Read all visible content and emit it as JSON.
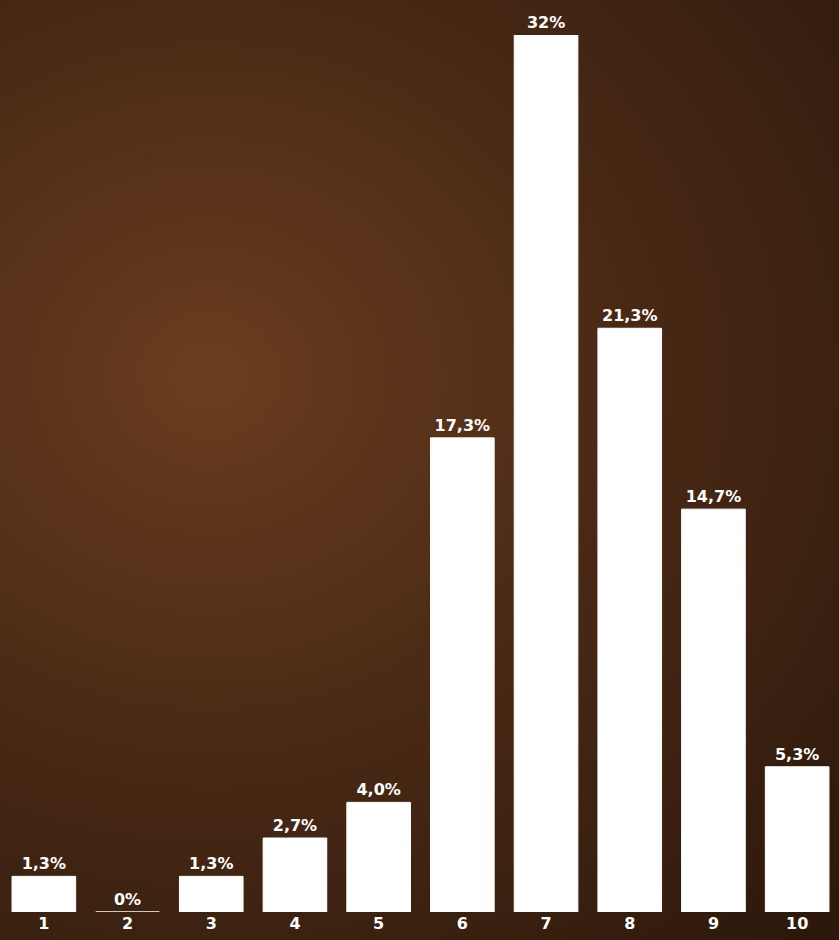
{
  "chart_data": {
    "type": "bar",
    "categories": [
      "1",
      "2",
      "3",
      "4",
      "5",
      "6",
      "7",
      "8",
      "9",
      "10"
    ],
    "values": [
      1.3,
      0,
      1.3,
      2.7,
      4.0,
      17.3,
      32,
      21.3,
      14.7,
      5.3
    ],
    "value_labels": [
      "1,3%",
      "0%",
      "1,3%",
      "2,7%",
      "4,0%",
      "17,3%",
      "32%",
      "21,3%",
      "14,7%",
      "5,3%"
    ],
    "color": "#ffffff",
    "ylim": [
      0,
      32
    ],
    "grid": false,
    "data_labels": true,
    "tick_labels": "x"
  }
}
